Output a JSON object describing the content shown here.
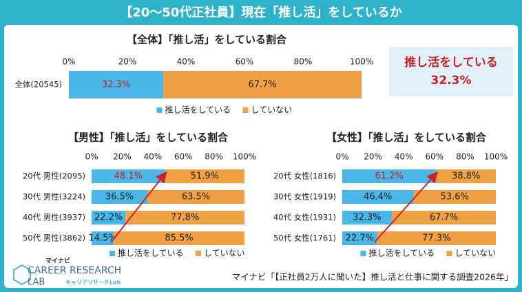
{
  "header": {
    "title": "【20～50代正社員】現在「推し活」をしているか"
  },
  "callout": {
    "text": "推し活をしている",
    "value": "32.3%"
  },
  "source": "マイナビ「【正社員2万人に聞いた】推し活と仕事に関する調査2026年」",
  "logo": {
    "brand": "マイナビ",
    "name": "CAREER RESEARCH",
    "lab": "LAB",
    "sub": "キャリアリサーチLab"
  },
  "chart_data": [
    {
      "type": "stacked-bar",
      "title": "【全体】「推し活」をしている割合",
      "categories": [
        "全体(20545)"
      ],
      "series": [
        {
          "name": "推し活をしている",
          "color": "#4bb6e8",
          "values": [
            32.3
          ],
          "value_labels": [
            "32.3%"
          ]
        },
        {
          "name": "していない",
          "color": "#f0a044",
          "values": [
            67.7
          ],
          "value_labels": [
            "67.7%"
          ]
        }
      ],
      "xlim": [
        0,
        100
      ],
      "xticks": [
        {
          "value": 0,
          "label": "0%"
        },
        {
          "value": 20,
          "label": "20%"
        },
        {
          "value": 40,
          "label": "40%"
        },
        {
          "value": 60,
          "label": "60%"
        },
        {
          "value": 80,
          "label": "80%"
        },
        {
          "value": 100,
          "label": "100%"
        }
      ]
    },
    {
      "type": "stacked-bar",
      "title": "【男性】「推し活」をしている割合",
      "categories": [
        "20代 男性(2095)",
        "30代 男性(3224)",
        "40代 男性(3937)",
        "50代 男性(3862)"
      ],
      "series": [
        {
          "name": "推し活をしている",
          "color": "#4bb6e8",
          "values": [
            48.1,
            36.5,
            22.2,
            14.5
          ],
          "value_labels": [
            "48.1%",
            "36.5%",
            "22.2%",
            "14.5%"
          ]
        },
        {
          "name": "していない",
          "color": "#f0a044",
          "values": [
            51.9,
            63.5,
            77.8,
            85.5
          ],
          "value_labels": [
            "51.9%",
            "63.5%",
            "77.8%",
            "85.5%"
          ]
        }
      ],
      "xlim": [
        0,
        100
      ],
      "xticks": [
        {
          "value": 0,
          "label": "0%"
        },
        {
          "value": 20,
          "label": "20%"
        },
        {
          "value": 40,
          "label": "40%"
        },
        {
          "value": 60,
          "label": "60%"
        },
        {
          "value": 80,
          "label": "80%"
        },
        {
          "value": 100,
          "label": "100%"
        }
      ]
    },
    {
      "type": "stacked-bar",
      "title": "【女性】「推し活」をしている割合",
      "categories": [
        "20代 女性(1816)",
        "30代 女性(1919)",
        "40代 女性(1931)",
        "50代 女性(1761)"
      ],
      "series": [
        {
          "name": "推し活をしている",
          "color": "#4bb6e8",
          "values": [
            61.2,
            46.4,
            32.3,
            22.7
          ],
          "value_labels": [
            "61.2%",
            "46.4%",
            "32.3%",
            "22.7%"
          ]
        },
        {
          "name": "していない",
          "color": "#f0a044",
          "values": [
            38.8,
            53.6,
            67.7,
            77.3
          ],
          "value_labels": [
            "38.8%",
            "53.6%",
            "67.7%",
            "77.3%"
          ]
        }
      ],
      "xlim": [
        0,
        100
      ],
      "xticks": [
        {
          "value": 0,
          "label": "0%"
        },
        {
          "value": 20,
          "label": "20%"
        },
        {
          "value": 40,
          "label": "40%"
        },
        {
          "value": 60,
          "label": "60%"
        },
        {
          "value": 80,
          "label": "80%"
        },
        {
          "value": 100,
          "label": "100%"
        }
      ]
    }
  ]
}
